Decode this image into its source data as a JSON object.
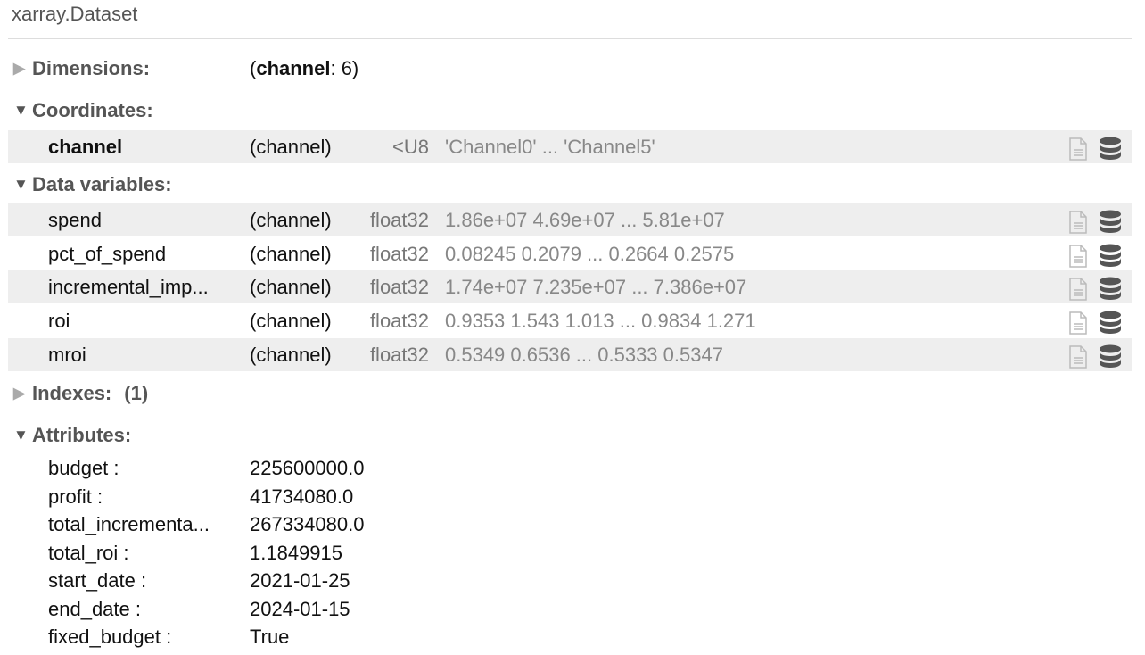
{
  "title": "xarray.Dataset",
  "sections": {
    "dimensions": "Dimensions:",
    "coordinates": "Coordinates:",
    "data_variables": "Data variables:",
    "indexes": "Indexes:",
    "indexes_count": "(1)",
    "attributes": "Attributes:"
  },
  "dimensions": {
    "open": "(",
    "name": "channel",
    "rest": ": 6)"
  },
  "coordinates": [
    {
      "name": "channel",
      "dims": "(channel)",
      "dtype": "<U8",
      "preview": "'Channel0' ... 'Channel5'"
    }
  ],
  "data_variables": [
    {
      "name": "spend",
      "dims": "(channel)",
      "dtype": "float32",
      "preview": "1.86e+07 4.69e+07 ... 5.81e+07"
    },
    {
      "name": "pct_of_spend",
      "dims": "(channel)",
      "dtype": "float32",
      "preview": "0.08245 0.2079 ... 0.2664 0.2575"
    },
    {
      "name": "incremental_imp...",
      "dims": "(channel)",
      "dtype": "float32",
      "preview": "1.74e+07 7.235e+07 ... 7.386e+07"
    },
    {
      "name": "roi",
      "dims": "(channel)",
      "dtype": "float32",
      "preview": "0.9353 1.543 1.013 ... 0.9834 1.271"
    },
    {
      "name": "mroi",
      "dims": "(channel)",
      "dtype": "float32",
      "preview": "0.5349 0.6536 ... 0.5333 0.5347"
    }
  ],
  "attributes": [
    {
      "key": "budget :",
      "value": "225600000.0"
    },
    {
      "key": "profit :",
      "value": "41734080.0"
    },
    {
      "key": "total_incrementa...",
      "value": "267334080.0"
    },
    {
      "key": "total_roi :",
      "value": "1.1849915"
    },
    {
      "key": "start_date :",
      "value": "2021-01-25"
    },
    {
      "key": "end_date :",
      "value": "2024-01-15"
    },
    {
      "key": "fixed_budget :",
      "value": "True"
    }
  ],
  "icons": {
    "attrs": "file-text-icon",
    "data": "database-icon"
  }
}
